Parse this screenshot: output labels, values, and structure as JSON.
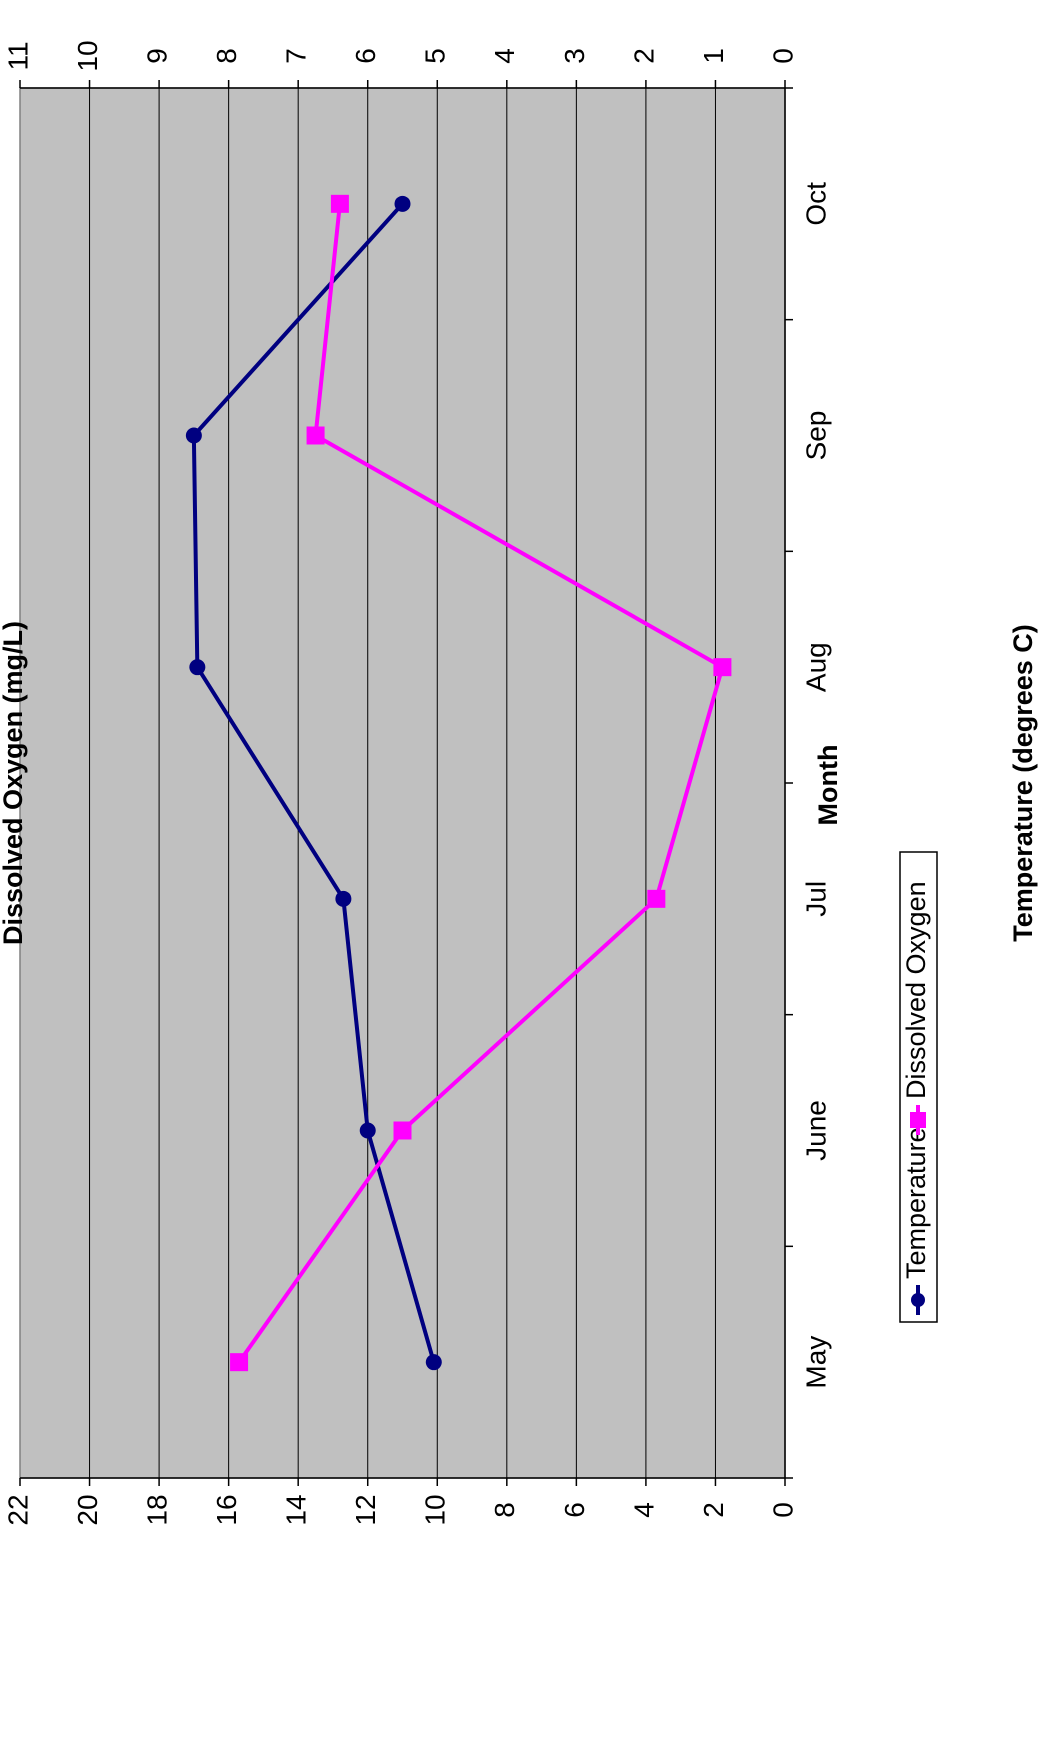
{
  "chart_data": {
    "type": "line",
    "title": "",
    "orientation": "rotated 90 degrees counter-clockwise",
    "categories": [
      "May",
      "June",
      "Jul",
      "Aug",
      "Sep",
      "Oct"
    ],
    "xlabel": "Month",
    "ylabel_left": "Temperature (degrees C)",
    "ylabel_right": "Dissolved Oxygen (mg/L)",
    "ylim_left": [
      0,
      22
    ],
    "ylim_right": [
      0,
      11
    ],
    "yticks_left": [
      "0",
      "2",
      "4",
      "6",
      "8",
      "10",
      "12",
      "14",
      "16",
      "18",
      "20",
      "22"
    ],
    "yticks_right": [
      "0",
      "1",
      "2",
      "3",
      "4",
      "5",
      "6",
      "7",
      "8",
      "9",
      "10",
      "11"
    ],
    "grid": true,
    "legend": "bottom",
    "series": [
      {
        "name": "Temperature",
        "axis": "left",
        "color": "#000080",
        "marker": "circle",
        "values": [
          10.1,
          12.0,
          12.7,
          16.9,
          17.0,
          11.0
        ]
      },
      {
        "name": "Dissolved Oxygen",
        "axis": "right",
        "color": "#FF00FF",
        "marker": "square",
        "values": [
          7.85,
          5.5,
          1.85,
          0.9,
          6.75,
          6.4
        ]
      }
    ],
    "plot_background": "#C0C0C0"
  }
}
